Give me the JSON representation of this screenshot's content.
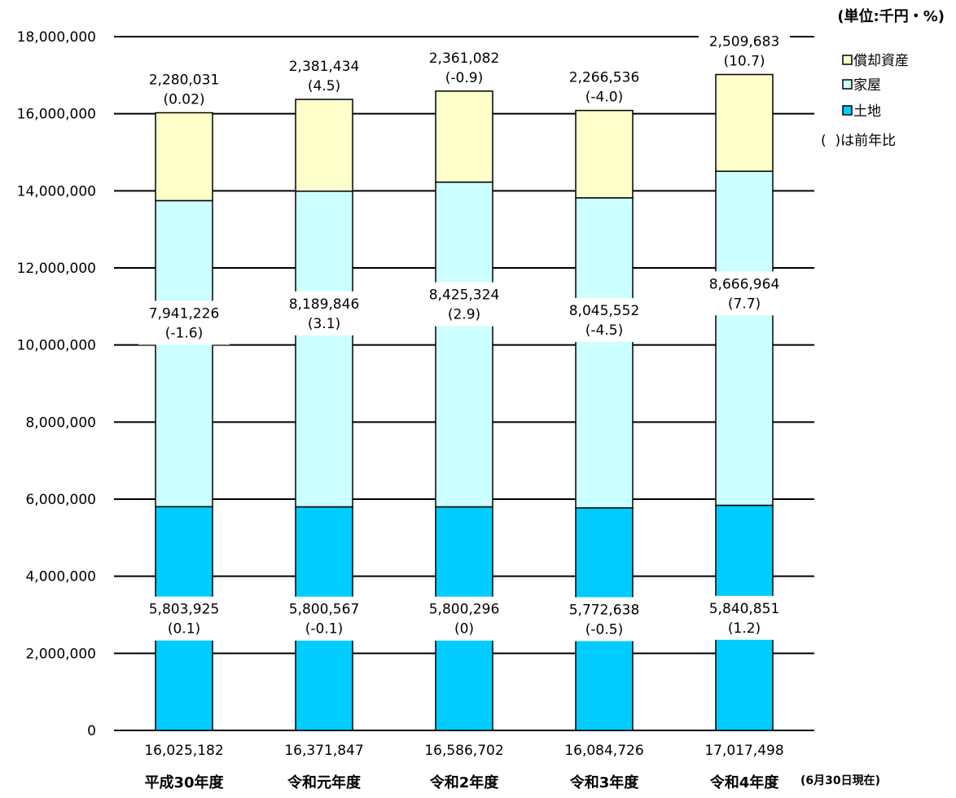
{
  "chart_data": {
    "type": "bar",
    "stacked": true,
    "unit_label": "(単位:千円・%)",
    "categories": [
      "平成30年度",
      "令和元年度",
      "令和2年度",
      "令和3年度",
      "令和4年度"
    ],
    "series": [
      {
        "name": "土地",
        "color": "#00ccff",
        "values": [
          5803925,
          5800567,
          5800296,
          5772638,
          5840851
        ],
        "changes": [
          "(0.1)",
          "(-0.1)",
          "(0)",
          "(-0.5)",
          "(1.2)"
        ]
      },
      {
        "name": "家屋",
        "color": "#ccffff",
        "values": [
          7941226,
          8189846,
          8425324,
          8045552,
          8666964
        ],
        "changes": [
          "(-1.6)",
          "(3.1)",
          "(2.9)",
          "(-4.5)",
          "(7.7)"
        ]
      },
      {
        "name": "償却資産",
        "color": "#ffffcc",
        "values": [
          2280031,
          2381434,
          2361082,
          2266536,
          2509683
        ],
        "changes": [
          "(0.02)",
          "(4.5)",
          "(-0.9)",
          "(-4.0)",
          "(10.7)"
        ]
      }
    ],
    "value_labels": [
      [
        "5,803,925",
        "5,800,567",
        "5,800,296",
        "5,772,638",
        "5,840,851"
      ],
      [
        "7,941,226",
        "8,189,846",
        "8,425,324",
        "8,045,552",
        "8,666,964"
      ],
      [
        "2,280,031",
        "2,381,434",
        "2,361,082",
        "2,266,536",
        "2,509,683"
      ]
    ],
    "totals": [
      16025182,
      16371847,
      16586702,
      16084726,
      17017498
    ],
    "total_labels": [
      "16,025,182",
      "16,371,847",
      "16,586,702",
      "16,084,726",
      "17,017,498"
    ],
    "ylim": [
      0,
      18000000
    ],
    "yticks": [
      0,
      2000000,
      4000000,
      6000000,
      8000000,
      10000000,
      12000000,
      14000000,
      16000000,
      18000000
    ],
    "ytick_labels": [
      "0",
      "2,000,000",
      "4,000,000",
      "6,000,000",
      "8,000,000",
      "10,000,000",
      "12,000,000",
      "14,000,000",
      "16,000,000",
      "18,000,000"
    ],
    "grid": true,
    "legend_position": "right",
    "legend_note": "(  )は前年比",
    "date_note": "(6月30日現在)"
  }
}
